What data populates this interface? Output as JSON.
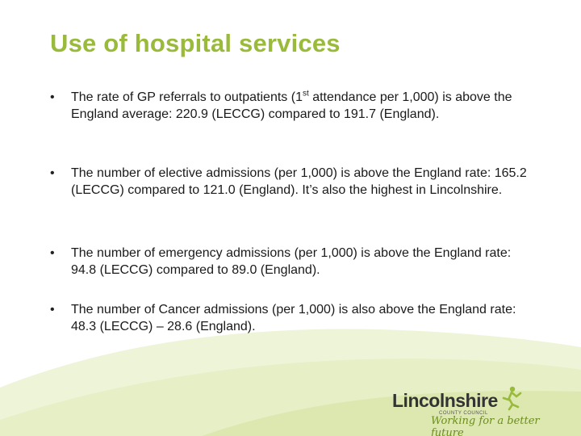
{
  "title": "Use of hospital services",
  "bullets": [
    {
      "marker": "•",
      "text_pre": "The rate of GP referrals to outpatients (1",
      "text_sup": "st",
      "text_post": " attendance per 1,000) is above the England average: 220.9 (LECCG) compared to 191.7 (England)."
    },
    {
      "marker": "•",
      "text": "The number of elective admissions (per 1,000) is above the England rate: 165.2 (LECCG) compared to 121.0 (England). It’s also the highest in Lincolnshire."
    },
    {
      "marker": "•",
      "text": "The number of emergency admissions (per 1,000) is above the England rate: 94.8 (LECCG) compared to 89.0 (England)."
    },
    {
      "marker": "•",
      "text": "The number of Cancer admissions (per 1,000) is also above the England rate: 48.3 (LECCG) – 28.6 (England)."
    }
  ],
  "logo": {
    "name": "Lincolnshire",
    "subtitle": "COUNTY COUNCIL",
    "tagline": "Working for a better future"
  },
  "colors": {
    "accent": "#9aba3b",
    "swoosh_light": "#eef4d8",
    "swoosh_mid": "#dbe9b0"
  }
}
